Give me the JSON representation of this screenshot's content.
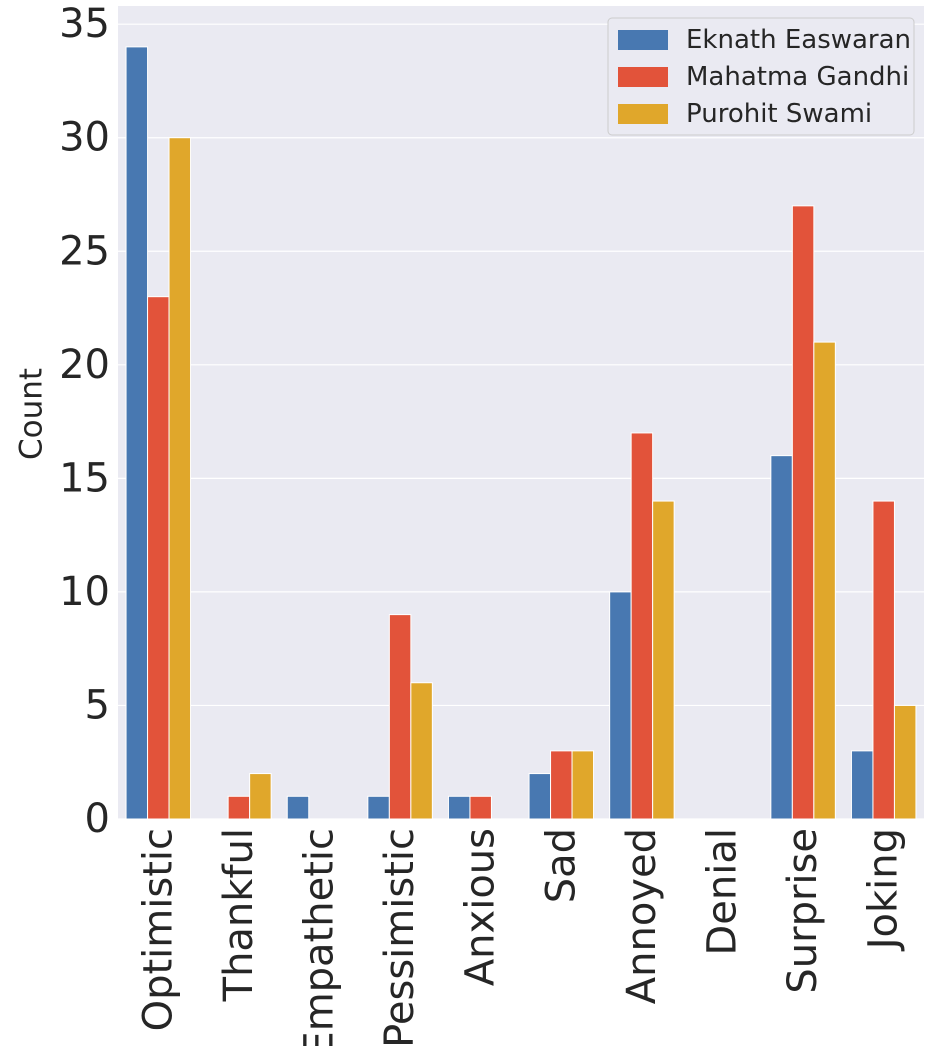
{
  "chart_data": {
    "type": "bar",
    "title": "",
    "xlabel": "",
    "ylabel": "Count",
    "ylim": [
      0,
      35.8
    ],
    "yticks": [
      0,
      5,
      10,
      15,
      20,
      25,
      30,
      35
    ],
    "grid": true,
    "legend_position": "top-right",
    "categories": [
      "Optimistic",
      "Thankful",
      "Empathetic",
      "Pessimistic",
      "Anxious",
      "Sad",
      "Annoyed",
      "Denial",
      "Surprise",
      "Joking"
    ],
    "series": [
      {
        "name": "Eknath Easwaran",
        "color": "#4878b1",
        "values": [
          34,
          0,
          1,
          1,
          1,
          2,
          10,
          0,
          16,
          3
        ]
      },
      {
        "name": "Mahatma Gandhi",
        "color": "#e2533a",
        "values": [
          23,
          1,
          0,
          9,
          1,
          3,
          17,
          0,
          27,
          14
        ]
      },
      {
        "name": "Purohit Swami",
        "color": "#e0a72b",
        "values": [
          30,
          2,
          0,
          6,
          0,
          3,
          14,
          0,
          21,
          5
        ]
      }
    ]
  }
}
